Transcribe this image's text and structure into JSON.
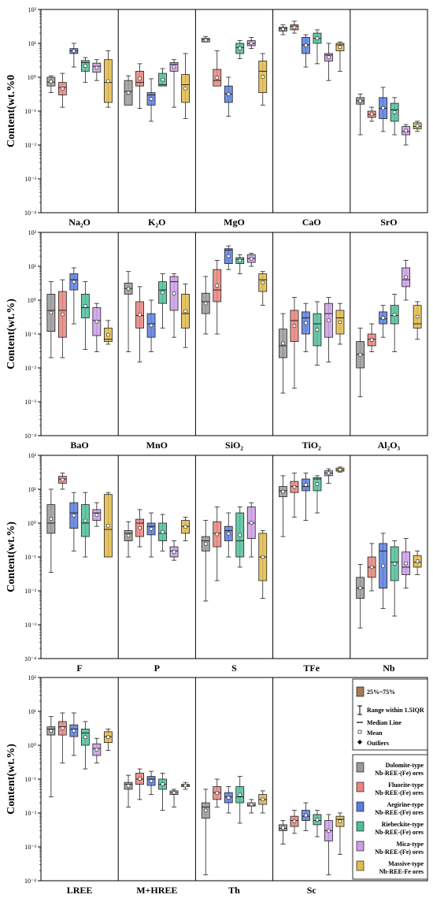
{
  "chart_data": {
    "type": "box",
    "y_scale": "log",
    "ylim": [
      0.0001,
      100
    ],
    "y_ticks": [
      "10⁻⁴",
      "10⁻³",
      "10⁻²",
      "10⁻¹",
      "10⁰",
      "10¹",
      "10²"
    ],
    "series": [
      {
        "name": "Dolomite-type Nb-REE-(Fe) ores",
        "color": "#9a9a9a"
      },
      {
        "name": "Fluorite-type Nb-REE-(Fe) ores",
        "color": "#e8857d"
      },
      {
        "name": "Aegirine-type Nb-REE-(Fe) ores",
        "color": "#5a7ee0"
      },
      {
        "name": "Riebeckite-type Nb-REE-(Fe) ores",
        "color": "#4fbf9a"
      },
      {
        "name": "Mica-type Nb-REE-(Fe) ores",
        "color": "#cc9ee8"
      },
      {
        "name": "Massive-type Nb-REE-Fe ores",
        "color": "#e3bb4a"
      }
    ],
    "panels": [
      {
        "ylabel": "Content(wt.%0",
        "elements": [
          {
            "label": "Na₂O",
            "boxes": [
              [
                0.35,
                0.55,
                0.72,
                1.0,
                1.1
              ],
              [
                0.13,
                0.3,
                0.5,
                0.7,
                1.3
              ],
              [
                2,
                5,
                6,
                7,
                10
              ],
              [
                0.7,
                1.5,
                2.7,
                3.1,
                3.8
              ],
              [
                0.8,
                1.4,
                2.1,
                2.6,
                3.3
              ],
              [
                0.13,
                0.18,
                0.7,
                3.3,
                6.0
              ]
            ]
          },
          {
            "label": "K₂O",
            "boxes": [
              [
                0.3,
                0.15,
                0.38,
                0.8,
                1.1
              ],
              [
                0.12,
                0.55,
                0.7,
                1.5,
                2.5
              ],
              [
                0.05,
                0.15,
                0.3,
                0.35,
                0.9
              ],
              [
                0.6,
                0.55,
                0.6,
                1.3,
                1.8
              ],
              [
                0.13,
                1.5,
                2.4,
                2.7,
                3.3
              ],
              [
                0.06,
                0.18,
                0.6,
                1.2,
                5.0
              ]
            ]
          },
          {
            "label": "MgO",
            "boxes": [
              [
                13,
                11,
                13,
                14,
                16
              ],
              [
                0.8,
                0.55,
                0.8,
                1.7,
                6.0
              ],
              [
                0.07,
                0.18,
                0.32,
                0.55,
                1.0
              ],
              [
                3.5,
                5,
                7.5,
                10,
                12
              ],
              [
                7,
                8.5,
                10,
                12,
                15
              ],
              [
                0.15,
                0.35,
                1.5,
                3.0,
                5.0
              ]
            ]
          },
          {
            "label": "CaO",
            "boxes": [
              [
                18,
                23,
                27,
                30,
                35
              ],
              [
                20,
                25,
                32,
                35,
                45
              ],
              [
                2,
                5,
                9,
                15,
                18
              ],
              [
                2.5,
                10,
                14,
                20,
                25
              ],
              [
                0.8,
                3,
                4.5,
                5,
                10
              ],
              [
                1.5,
                6,
                9,
                10,
                11
              ]
            ]
          },
          {
            "label": "SrO",
            "boxes": [
              [
                0.02,
                0.16,
                0.2,
                0.25,
                0.32
              ],
              [
                0.05,
                0.065,
                0.08,
                0.1,
                0.13
              ],
              [
                0.025,
                0.06,
                0.12,
                0.25,
                0.5
              ],
              [
                0.02,
                0.05,
                0.11,
                0.17,
                0.25
              ],
              [
                0.01,
                0.02,
                0.025,
                0.035,
                0.04
              ],
              [
                0.025,
                0.03,
                0.035,
                0.045,
                0.05
              ]
            ]
          }
        ]
      },
      {
        "ylabel": "Content(wt.%)",
        "elements": [
          {
            "label": "BaO",
            "boxes": [
              [
                0.02,
                0.12,
                0.5,
                1.5,
                3.5
              ],
              [
                0.02,
                0.08,
                0.5,
                1.8,
                4.0
              ],
              [
                0.2,
                2,
                4,
                6,
                9
              ],
              [
                0.035,
                0.3,
                0.6,
                1.5,
                3.5
              ],
              [
                0.03,
                0.09,
                0.25,
                0.6,
                0.8
              ],
              [
                0.05,
                0.06,
                0.07,
                0.15,
                0.25
              ]
            ]
          },
          {
            "label": "MnO",
            "boxes": [
              [
                0.03,
                1.5,
                2.2,
                3.2,
                7
              ],
              [
                0.015,
                0.15,
                0.35,
                0.9,
                2.5
              ],
              [
                0.03,
                0.08,
                0.2,
                0.4,
                1.0
              ],
              [
                0.15,
                0.8,
                2,
                3.5,
                6
              ],
              [
                0.08,
                0.5,
                3.5,
                5,
                6
              ],
              [
                0.04,
                0.15,
                0.4,
                1.5,
                3.0
              ]
            ]
          },
          {
            "label": "SiO₂",
            "boxes": [
              [
                0.1,
                0.4,
                0.9,
                1.6,
                5
              ],
              [
                0.1,
                0.9,
                2,
                8,
                15
              ],
              [
                8,
                12,
                30,
                33,
                40
              ],
              [
                6,
                12,
                16,
                18,
                22
              ],
              [
                10,
                13,
                17,
                22,
                24
              ],
              [
                0.7,
                1.8,
                4,
                6,
                7
              ]
            ]
          },
          {
            "label": "TiO₂",
            "boxes": [
              [
                0.0018,
                0.02,
                0.045,
                0.14,
                0.4
              ],
              [
                0.0025,
                0.06,
                0.25,
                0.5,
                1.2
              ],
              [
                0.03,
                0.1,
                0.3,
                0.45,
                0.8
              ],
              [
                0.012,
                0.045,
                0.2,
                0.4,
                0.9
              ],
              [
                0.015,
                0.08,
                0.4,
                0.8,
                1.2
              ],
              [
                0.05,
                0.1,
                0.3,
                0.5,
                0.8
              ]
            ]
          },
          {
            "label": "Al₂O₃",
            "boxes": [
              [
                0.0014,
                0.01,
                0.025,
                0.06,
                0.15
              ],
              [
                0.03,
                0.045,
                0.07,
                0.1,
                0.2
              ],
              [
                0.08,
                0.2,
                0.28,
                0.45,
                0.7
              ],
              [
                0.03,
                0.2,
                0.35,
                0.7,
                1.5
              ],
              [
                1,
                2.5,
                4,
                9,
                15
              ],
              [
                0.07,
                0.15,
                0.2,
                0.7,
                0.9
              ]
            ]
          }
        ]
      },
      {
        "ylabel": "Content(wt.%)",
        "elements": [
          {
            "label": "F",
            "boxes": [
              [
                0.035,
                0.5,
                1,
                3.5,
                10
              ],
              [
                10,
                15,
                20,
                24,
                30
              ],
              [
                0.15,
                0.7,
                2,
                4,
                8
              ],
              [
                0.1,
                0.4,
                1,
                3.5,
                8
              ],
              [
                0.8,
                1.2,
                2,
                2.5,
                4
              ],
              [
                0.1,
                0.1,
                0.65,
                7,
                8
              ]
            ]
          },
          {
            "label": "P",
            "boxes": [
              [
                0.1,
                0.3,
                0.5,
                0.6,
                1.1
              ],
              [
                0.2,
                0.4,
                1,
                1.3,
                2.5
              ],
              [
                0.1,
                0.45,
                0.8,
                1,
                2
              ],
              [
                0.15,
                0.3,
                0.5,
                1,
                1.8
              ],
              [
                0.08,
                0.1,
                0.15,
                0.2,
                0.3
              ],
              [
                0.3,
                0.5,
                0.8,
                1.2,
                1.5
              ]
            ]
          },
          {
            "label": "S",
            "boxes": [
              [
                0.005,
                0.15,
                0.3,
                0.4,
                1.2
              ],
              [
                0.02,
                0.2,
                0.5,
                1.1,
                3.0
              ],
              [
                0.1,
                0.3,
                0.6,
                0.8,
                2.0
              ],
              [
                0.05,
                0.1,
                0.3,
                2,
                3
              ],
              [
                0.1,
                0.35,
                1,
                3,
                4
              ],
              [
                0.006,
                0.02,
                0.1,
                0.5,
                0.6
              ]
            ]
          },
          {
            "label": "TFe",
            "boxes": [
              [
                0.4,
                6,
                9,
                12,
                25
              ],
              [
                1.5,
                8,
                12,
                17,
                30
              ],
              [
                1.2,
                9,
                12,
                20,
                30
              ],
              [
                2,
                9,
                20,
                22,
                25
              ],
              [
                15,
                25,
                30,
                35,
                40
              ],
              [
                32,
                34,
                37,
                42,
                45
              ]
            ]
          },
          {
            "label": "Nb",
            "boxes": [
              [
                0.0008,
                0.006,
                0.012,
                0.025,
                0.06
              ],
              [
                0.01,
                0.025,
                0.05,
                0.1,
                0.25
              ],
              [
                0.003,
                0.012,
                0.15,
                0.25,
                0.5
              ],
              [
                0.0018,
                0.02,
                0.07,
                0.2,
                0.3
              ],
              [
                0.012,
                0.03,
                0.05,
                0.14,
                0.35
              ],
              [
                0.03,
                0.05,
                0.07,
                0.11,
                0.15
              ]
            ]
          }
        ]
      },
      {
        "ylabel": "Content(wt.%)",
        "elements": [
          {
            "label": "LREE",
            "boxes": [
              [
                0.03,
                2,
                3,
                3.5,
                7
              ],
              [
                0.3,
                2,
                3.5,
                5,
                9
              ],
              [
                0.5,
                1.8,
                3,
                4,
                9
              ],
              [
                0.2,
                1,
                2.3,
                3,
                5
              ],
              [
                0.3,
                0.5,
                0.8,
                1.1,
                1.6
              ],
              [
                0.7,
                1.2,
                1.8,
                2.5,
                3
              ]
            ]
          },
          {
            "label": "M+HREE",
            "boxes": [
              [
                0.015,
                0.05,
                0.07,
                0.08,
                0.13
              ],
              [
                0.025,
                0.07,
                0.1,
                0.15,
                0.2
              ],
              [
                0.035,
                0.065,
                0.1,
                0.12,
                0.17
              ],
              [
                0.012,
                0.05,
                0.07,
                0.1,
                0.15
              ],
              [
                0.015,
                0.035,
                0.04,
                0.045,
                0.05
              ],
              [
                0.05,
                0.06,
                0.065,
                0.07,
                0.08
              ]
            ]
          },
          {
            "label": "Th",
            "boxes": [
              [
                0.00015,
                0.007,
                0.015,
                0.02,
                0.05
              ],
              [
                0.015,
                0.025,
                0.04,
                0.06,
                0.1
              ],
              [
                0.01,
                0.02,
                0.03,
                0.04,
                0.06
              ],
              [
                0.005,
                0.02,
                0.03,
                0.06,
                0.12
              ],
              [
                0.01,
                0.016,
                0.017,
                0.02,
                0.025
              ],
              [
                0.01,
                0.018,
                0.025,
                0.035,
                0.045
              ]
            ]
          },
          {
            "label": "Sc",
            "boxes": [
              [
                0.0012,
                0.003,
                0.0035,
                0.0045,
                0.006
              ],
              [
                0.0025,
                0.004,
                0.006,
                0.008,
                0.012
              ],
              [
                0.003,
                0.006,
                0.008,
                0.012,
                0.02
              ],
              [
                0.002,
                0.0045,
                0.006,
                0.009,
                0.012
              ],
              [
                0.00015,
                0.0015,
                0.003,
                0.006,
                0.009
              ],
              [
                0.0006,
                0.004,
                0.0065,
                0.008,
                0.01
              ]
            ]
          }
        ]
      }
    ],
    "legend": {
      "iqr": "25%~75%",
      "range": "Range within 1.5IQR",
      "median": "Median Line",
      "mean": "Mean",
      "outliers": "Outliers"
    }
  }
}
